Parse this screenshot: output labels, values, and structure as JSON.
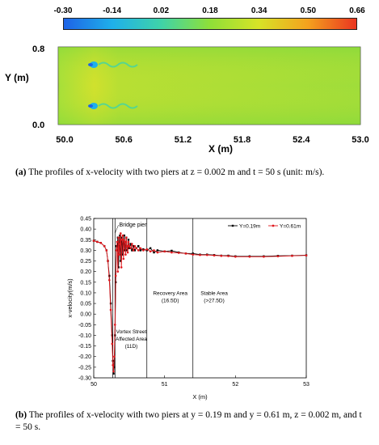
{
  "panel_a": {
    "colorbar": {
      "ticks": [
        "-0.30",
        "-0.14",
        "0.02",
        "0.18",
        "0.34",
        "0.50",
        "0.66"
      ],
      "colors": [
        "#1e63e6",
        "#1fb0ea",
        "#3fd3a8",
        "#8fe038",
        "#d7e227",
        "#f4a21e",
        "#ea3520"
      ]
    },
    "y_label": "Y (m)",
    "x_label": "X (m)",
    "y_ticks": [
      "0.8",
      "0.0"
    ],
    "x_ticks": [
      "50.0",
      "50.6",
      "51.2",
      "51.8",
      "52.4",
      "53.0"
    ],
    "caption_tag": "(a)",
    "caption": "The profiles of x-velocity with two piers at z = 0.002 m and t = 50 s (unit: m/s)."
  },
  "chart_data": {
    "type": "line",
    "title": "",
    "xlabel": "X (m)",
    "ylabel": "x-velocity(m/s)",
    "xlim": [
      50,
      53
    ],
    "ylim": [
      -0.3,
      0.45
    ],
    "x_ticks": [
      "50",
      "51",
      "52",
      "53"
    ],
    "y_ticks": [
      "0.45",
      "0.40",
      "0.35",
      "0.30",
      "0.25",
      "0.20",
      "0.15",
      "0.10",
      "0.05",
      "0.00",
      "-0.05",
      "-0.10",
      "-0.15",
      "-0.20",
      "-0.25",
      "-0.30"
    ],
    "legend": [
      "Y=0.19m",
      "Y=0.61m"
    ],
    "legend_position": "top-right",
    "series": [
      {
        "name": "Y=0.19m",
        "color": "#000000",
        "marker": "square",
        "x": [
          50.0,
          50.05,
          50.1,
          50.15,
          50.18,
          50.2,
          50.22,
          50.24,
          50.26,
          50.27,
          50.28,
          50.29,
          50.3,
          50.31,
          50.32,
          50.33,
          50.34,
          50.35,
          50.36,
          50.37,
          50.38,
          50.39,
          50.4,
          50.41,
          50.42,
          50.43,
          50.44,
          50.45,
          50.46,
          50.47,
          50.48,
          50.49,
          50.5,
          50.52,
          50.54,
          50.56,
          50.58,
          50.6,
          50.63,
          50.66,
          50.7,
          50.75,
          50.8,
          50.85,
          50.9,
          51.0,
          51.1,
          51.2,
          51.3,
          51.4,
          51.5,
          51.6,
          51.7,
          51.8,
          51.9,
          52.0,
          52.2,
          52.4,
          52.6,
          52.8,
          53.0
        ],
        "y": [
          0.345,
          0.34,
          0.335,
          0.32,
          0.3,
          0.25,
          0.18,
          0.05,
          -0.1,
          -0.22,
          -0.28,
          -0.25,
          -0.1,
          0.15,
          0.32,
          0.3,
          0.36,
          0.22,
          0.33,
          0.37,
          0.25,
          0.34,
          0.36,
          0.28,
          0.33,
          0.37,
          0.3,
          0.32,
          0.36,
          0.3,
          0.31,
          0.35,
          0.31,
          0.33,
          0.3,
          0.32,
          0.3,
          0.31,
          0.32,
          0.3,
          0.305,
          0.3,
          0.31,
          0.29,
          0.3,
          0.295,
          0.298,
          0.29,
          0.285,
          0.285,
          0.28,
          0.28,
          0.278,
          0.275,
          0.275,
          0.272,
          0.272,
          0.272,
          0.274,
          0.275,
          0.277
        ]
      },
      {
        "name": "Y=0.61m",
        "color": "#e0171c",
        "marker": "circle",
        "x": [
          50.0,
          50.05,
          50.1,
          50.15,
          50.18,
          50.2,
          50.22,
          50.24,
          50.26,
          50.27,
          50.28,
          50.29,
          50.3,
          50.31,
          50.32,
          50.33,
          50.34,
          50.35,
          50.36,
          50.37,
          50.38,
          50.39,
          50.4,
          50.41,
          50.42,
          50.43,
          50.44,
          50.45,
          50.46,
          50.47,
          50.48,
          50.49,
          50.5,
          50.52,
          50.54,
          50.56,
          50.58,
          50.6,
          50.63,
          50.66,
          50.7,
          50.75,
          50.8,
          50.85,
          50.9,
          51.0,
          51.1,
          51.2,
          51.3,
          51.4,
          51.5,
          51.6,
          51.7,
          51.8,
          51.9,
          52.0,
          52.2,
          52.4,
          52.6,
          52.8,
          53.0
        ],
        "y": [
          0.345,
          0.34,
          0.335,
          0.32,
          0.3,
          0.25,
          0.16,
          0.02,
          -0.14,
          -0.24,
          -0.27,
          -0.2,
          -0.05,
          0.18,
          0.3,
          0.34,
          0.2,
          0.36,
          0.28,
          0.33,
          0.38,
          0.22,
          0.35,
          0.37,
          0.26,
          0.35,
          0.34,
          0.28,
          0.36,
          0.32,
          0.29,
          0.34,
          0.32,
          0.31,
          0.33,
          0.3,
          0.32,
          0.31,
          0.3,
          0.31,
          0.3,
          0.305,
          0.295,
          0.3,
          0.29,
          0.295,
          0.29,
          0.288,
          0.285,
          0.28,
          0.278,
          0.278,
          0.276,
          0.274,
          0.273,
          0.27,
          0.27,
          0.27,
          0.272,
          0.274,
          0.276
        ]
      }
    ],
    "vertical_lines": [
      50.27,
      50.3,
      50.75,
      51.4
    ],
    "annotations": {
      "pier": "Bridge pier",
      "vortex": [
        "Vortex Street",
        "Affected Area",
        "(11D)"
      ],
      "recovery": [
        "Recovery Area",
        "(16.5D)"
      ],
      "stable": [
        "Stable Area",
        "(>27.5D)"
      ]
    }
  },
  "panel_b": {
    "caption_tag": "(b)",
    "caption": "The profiles of x-velocity with two piers at y = 0.19 m and y = 0.61 m, z = 0.002 m, and t = 50 s."
  }
}
